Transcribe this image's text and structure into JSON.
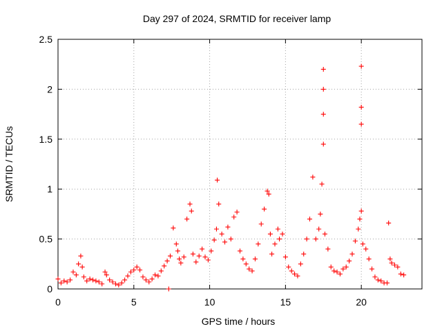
{
  "chart_data": {
    "type": "scatter",
    "title": "Day 297 of 2024, SRMTID for receiver lamp",
    "xlabel": "GPS time / hours",
    "ylabel": "SRMTID / TECUs",
    "xlim": [
      0,
      24
    ],
    "ylim": [
      0,
      2.5
    ],
    "x_ticks": [
      0,
      5,
      10,
      15,
      20
    ],
    "x_tick_labels": [
      "0",
      "5",
      "10",
      "15",
      "20"
    ],
    "y_ticks": [
      0,
      0.5,
      1,
      1.5,
      2,
      2.5
    ],
    "y_tick_labels": [
      "0",
      "0.5",
      "1",
      "1.5",
      "2",
      "2.5"
    ],
    "grid": true,
    "marker": "+",
    "series": [
      {
        "name": "lamp",
        "color": "#ff0000",
        "x": [
          0.0,
          0.2,
          0.4,
          0.6,
          0.8,
          1.0,
          1.2,
          1.35,
          1.5,
          1.6,
          1.7,
          1.9,
          2.1,
          2.3,
          2.5,
          2.7,
          2.9,
          3.1,
          3.2,
          3.4,
          3.6,
          3.8,
          4.0,
          4.2,
          4.4,
          4.6,
          4.8,
          5.0,
          5.2,
          5.4,
          5.6,
          5.8,
          6.0,
          6.2,
          6.4,
          6.6,
          6.8,
          7.0,
          7.2,
          7.4,
          7.6,
          7.8,
          7.9,
          8.0,
          8.1,
          8.3,
          8.5,
          8.7,
          8.8,
          8.9,
          9.1,
          9.3,
          9.5,
          9.7,
          9.9,
          10.1,
          10.3,
          10.45,
          10.5,
          10.6,
          10.8,
          11.0,
          11.2,
          11.4,
          11.6,
          11.8,
          12.0,
          12.2,
          12.4,
          12.6,
          12.8,
          13.0,
          13.2,
          13.4,
          13.6,
          13.8,
          13.9,
          14.0,
          14.1,
          14.3,
          14.5,
          14.6,
          14.8,
          15.0,
          15.2,
          15.4,
          15.6,
          15.8,
          16.0,
          16.2,
          16.4,
          16.6,
          16.8,
          17.0,
          17.2,
          17.3,
          17.4,
          17.5,
          17.5,
          17.5,
          17.5,
          17.6,
          17.8,
          18.0,
          18.2,
          18.4,
          18.6,
          18.8,
          19.0,
          19.2,
          19.4,
          19.6,
          19.8,
          19.9,
          20.0,
          20.0,
          20.0,
          20.0,
          20.1,
          20.3,
          20.5,
          20.7,
          20.9,
          21.1,
          21.3,
          21.5,
          21.7,
          21.8,
          21.9,
          22.0,
          22.2,
          22.4,
          22.6,
          22.8,
          7.3
        ],
        "y": [
          0.1,
          0.06,
          0.08,
          0.07,
          0.09,
          0.17,
          0.14,
          0.25,
          0.33,
          0.22,
          0.12,
          0.08,
          0.1,
          0.09,
          0.08,
          0.07,
          0.05,
          0.17,
          0.14,
          0.09,
          0.07,
          0.05,
          0.04,
          0.06,
          0.09,
          0.13,
          0.17,
          0.19,
          0.22,
          0.19,
          0.12,
          0.09,
          0.07,
          0.1,
          0.14,
          0.13,
          0.18,
          0.23,
          0.28,
          0.33,
          0.61,
          0.45,
          0.38,
          0.3,
          0.26,
          0.32,
          0.7,
          0.85,
          0.78,
          0.35,
          0.27,
          0.33,
          0.4,
          0.32,
          0.29,
          0.38,
          0.49,
          0.6,
          1.09,
          0.85,
          0.55,
          0.47,
          0.62,
          0.5,
          0.72,
          0.77,
          0.38,
          0.3,
          0.25,
          0.2,
          0.18,
          0.3,
          0.45,
          0.65,
          0.8,
          0.98,
          0.95,
          0.55,
          0.35,
          0.45,
          0.6,
          0.5,
          0.55,
          0.32,
          0.22,
          0.18,
          0.15,
          0.13,
          0.25,
          0.35,
          0.5,
          0.7,
          1.12,
          0.5,
          0.6,
          0.75,
          1.05,
          1.45,
          1.75,
          2.0,
          2.2,
          0.55,
          0.4,
          0.22,
          0.18,
          0.17,
          0.15,
          0.2,
          0.22,
          0.28,
          0.35,
          0.48,
          0.6,
          0.7,
          0.78,
          1.65,
          1.82,
          2.23,
          0.45,
          0.4,
          0.3,
          0.2,
          0.12,
          0.09,
          0.08,
          0.06,
          0.06,
          0.66,
          0.3,
          0.26,
          0.24,
          0.22,
          0.15,
          0.14,
          0.0
        ]
      }
    ]
  }
}
